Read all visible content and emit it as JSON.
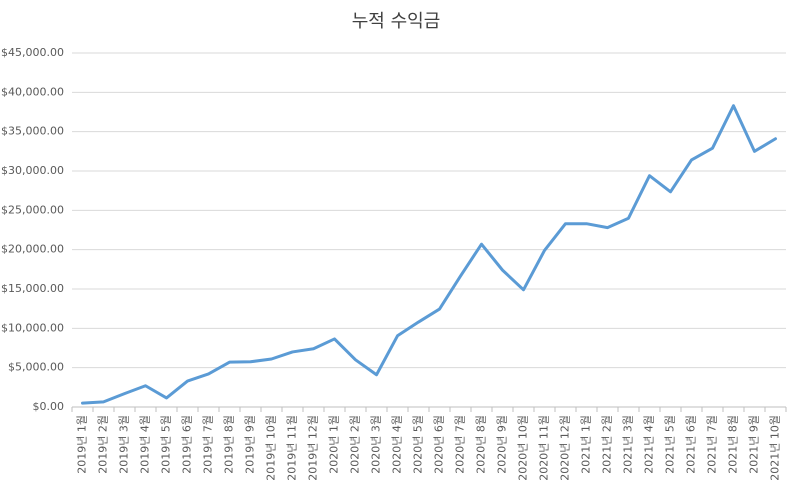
{
  "chart_data": {
    "type": "line",
    "title": "누적 수익금",
    "categories": [
      "2019년 1월",
      "2019년 2월",
      "2019년 3월",
      "2019년 4월",
      "2019년 5월",
      "2019년 6월",
      "2019년 7월",
      "2019년 8월",
      "2019년 9월",
      "2019년 10월",
      "2019년 11월",
      "2019년 12월",
      "2020년 1월",
      "2020년 2월",
      "2020년 3월",
      "2020년 4월",
      "2020년 5월",
      "2020년 6월",
      "2020년 7월",
      "2020년 8월",
      "2020년 9월",
      "2020년 10월",
      "2020년 11월",
      "2020년 12월",
      "2021년 1월",
      "2021년 2월",
      "2021년 3월",
      "2021년 4월",
      "2021년 5월",
      "2021년 6월",
      "2021년 7월",
      "2021년 8월",
      "2021년 9월",
      "2021년 10월"
    ],
    "series": [
      {
        "color": "#5b9bd5",
        "values": [
          500,
          650,
          1700,
          2700,
          1150,
          3300,
          4200,
          5700,
          5750,
          6100,
          7000,
          7400,
          8650,
          6000,
          4100,
          9050,
          10800,
          12450,
          16650,
          20700,
          17400,
          14900,
          19900,
          23300,
          23300,
          22800,
          24000,
          29400,
          27350,
          31400,
          32900,
          38300,
          32500,
          34100
        ]
      }
    ],
    "ylim": [
      0,
      45000
    ],
    "yticks": [
      {
        "value": 0,
        "label": "$0.00"
      },
      {
        "value": 5000,
        "label": "$5,000.00"
      },
      {
        "value": 10000,
        "label": "$10,000.00"
      },
      {
        "value": 15000,
        "label": "$15,000.00"
      },
      {
        "value": 20000,
        "label": "$20,000.00"
      },
      {
        "value": 25000,
        "label": "$25,000.00"
      },
      {
        "value": 30000,
        "label": "$30,000.00"
      },
      {
        "value": 35000,
        "label": "$35,000.00"
      },
      {
        "value": 40000,
        "label": "$40,000.00"
      },
      {
        "value": 45000,
        "label": "$45,000.00"
      }
    ],
    "grid": true
  }
}
